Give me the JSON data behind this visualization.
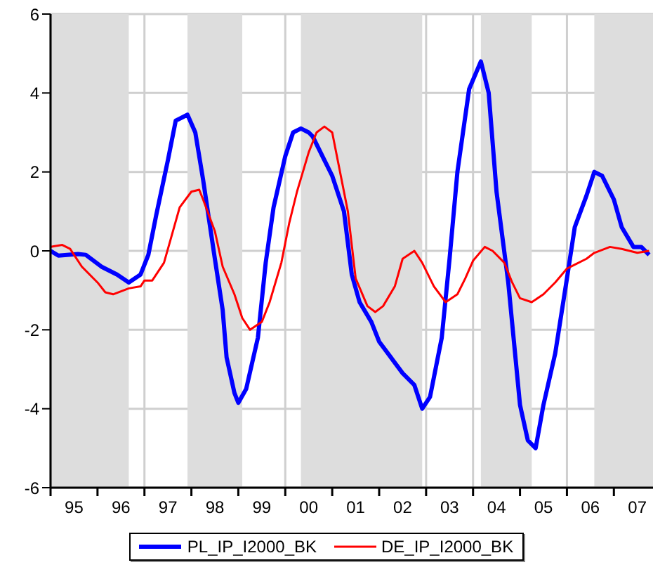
{
  "chart_data": {
    "type": "line",
    "series": [
      {
        "name": "PL_IP_I2000_BK",
        "color": "#0000ff",
        "x": [
          "1995-01",
          "1995-03",
          "1995-08",
          "1995-10",
          "1996-02",
          "1996-06",
          "1996-09",
          "1996-12",
          "1997-02",
          "1997-04",
          "1997-07",
          "1997-09",
          "1997-12",
          "1998-02",
          "1998-04",
          "1998-07",
          "1998-09",
          "1998-10",
          "1998-12",
          "1999-01",
          "1999-03",
          "1999-06",
          "1999-08",
          "1999-10",
          "2000-01",
          "2000-03",
          "2000-05",
          "2000-07",
          "2000-08",
          "2000-11",
          "2001-01",
          "2001-04",
          "2001-06",
          "2001-08",
          "2001-11",
          "2002-01",
          "2002-04",
          "2002-07",
          "2002-10",
          "2002-12",
          "2003-02",
          "2003-05",
          "2003-07",
          "2003-09",
          "2003-12",
          "2004-03",
          "2004-05",
          "2004-07",
          "2004-10",
          "2005-01",
          "2005-03",
          "2005-05",
          "2005-07",
          "2005-10",
          "2006-01",
          "2006-03",
          "2006-06",
          "2006-08",
          "2006-10",
          "2007-01",
          "2007-03",
          "2007-06",
          "2007-08",
          "2007-10"
        ],
        "values": [
          0.0,
          -0.12,
          -0.08,
          -0.1,
          -0.4,
          -0.6,
          -0.8,
          -0.6,
          -0.1,
          0.9,
          2.3,
          3.3,
          3.45,
          3.0,
          1.8,
          -0.2,
          -1.5,
          -2.7,
          -3.6,
          -3.85,
          -3.5,
          -2.2,
          -0.3,
          1.1,
          2.4,
          3.0,
          3.1,
          3.0,
          2.9,
          2.3,
          1.9,
          1.0,
          -0.6,
          -1.3,
          -1.8,
          -2.3,
          -2.7,
          -3.1,
          -3.4,
          -4.0,
          -3.7,
          -2.2,
          -0.2,
          2.0,
          4.1,
          4.8,
          4.0,
          1.5,
          -0.8,
          -3.9,
          -4.8,
          -5.0,
          -3.9,
          -2.6,
          -0.7,
          0.6,
          1.4,
          2.0,
          1.9,
          1.3,
          0.6,
          0.1,
          0.1,
          -0.1
        ]
      },
      {
        "name": "DE_IP_I2000_BK",
        "color": "#ff0000",
        "x": [
          "1995-01",
          "1995-04",
          "1995-06",
          "1995-09",
          "1996-01",
          "1996-03",
          "1996-05",
          "1996-09",
          "1996-12",
          "1997-01",
          "1997-03",
          "1997-06",
          "1997-08",
          "1997-10",
          "1998-01",
          "1998-03",
          "1998-04",
          "1998-07",
          "1998-09",
          "1998-12",
          "1999-02",
          "1999-04",
          "1999-07",
          "1999-09",
          "1999-12",
          "2000-02",
          "2000-04",
          "2000-07",
          "2000-09",
          "2000-11",
          "2001-01",
          "2001-02",
          "2001-05",
          "2001-07",
          "2001-10",
          "2001-12",
          "2002-02",
          "2002-05",
          "2002-07",
          "2002-10",
          "2002-12",
          "2003-03",
          "2003-06",
          "2003-09",
          "2003-11",
          "2004-01",
          "2004-04",
          "2004-06",
          "2004-09",
          "2004-11",
          "2005-01",
          "2005-04",
          "2005-07",
          "2005-10",
          "2006-01",
          "2006-03",
          "2006-06",
          "2006-08",
          "2006-12",
          "2007-03",
          "2007-07",
          "2007-10"
        ],
        "values": [
          0.1,
          0.15,
          0.05,
          -0.4,
          -0.8,
          -1.05,
          -1.1,
          -0.95,
          -0.9,
          -0.75,
          -0.75,
          -0.3,
          0.4,
          1.1,
          1.5,
          1.55,
          1.3,
          0.5,
          -0.4,
          -1.1,
          -1.7,
          -2.0,
          -1.8,
          -1.3,
          -0.3,
          0.7,
          1.5,
          2.5,
          3.0,
          3.15,
          3.0,
          2.5,
          1.0,
          -0.7,
          -1.4,
          -1.55,
          -1.4,
          -0.9,
          -0.2,
          0.0,
          -0.3,
          -0.9,
          -1.3,
          -1.1,
          -0.7,
          -0.25,
          0.1,
          0.0,
          -0.3,
          -0.8,
          -1.2,
          -1.3,
          -1.1,
          -0.8,
          -0.45,
          -0.35,
          -0.2,
          -0.05,
          0.1,
          0.05,
          -0.05,
          0.0
        ]
      }
    ],
    "xlim": [
      "1995-01",
      "2007-11"
    ],
    "xticks": [
      {
        "value": "1995",
        "label": null
      },
      {
        "value": "1995-07",
        "label": "95"
      },
      {
        "value": "1996",
        "label": null
      },
      {
        "value": "1996-07",
        "label": "96"
      },
      {
        "value": "1997",
        "label": null
      },
      {
        "value": "1997-07",
        "label": "97"
      },
      {
        "value": "1998",
        "label": null
      },
      {
        "value": "1998-07",
        "label": "98"
      },
      {
        "value": "1999",
        "label": null
      },
      {
        "value": "1999-07",
        "label": "99"
      },
      {
        "value": "2000",
        "label": null
      },
      {
        "value": "2000-07",
        "label": "00"
      },
      {
        "value": "2001",
        "label": null
      },
      {
        "value": "2001-07",
        "label": "01"
      },
      {
        "value": "2002",
        "label": null
      },
      {
        "value": "2002-07",
        "label": "02"
      },
      {
        "value": "2003",
        "label": null
      },
      {
        "value": "2003-07",
        "label": "03"
      },
      {
        "value": "2004",
        "label": null
      },
      {
        "value": "2004-07",
        "label": "04"
      },
      {
        "value": "2005",
        "label": null
      },
      {
        "value": "2005-07",
        "label": "05"
      },
      {
        "value": "2006",
        "label": null
      },
      {
        "value": "2006-07",
        "label": "06"
      },
      {
        "value": "2007",
        "label": null
      },
      {
        "value": "2007-07",
        "label": "07"
      }
    ],
    "ylim": [
      -6,
      6
    ],
    "yticks": [
      -6,
      -4,
      -2,
      0,
      2,
      4,
      6
    ],
    "bands": [
      {
        "axis": "x",
        "from": "1995-01",
        "to": "1996-09",
        "color": "#dddddd"
      },
      {
        "axis": "x",
        "from": "1997-12",
        "to": "1999-02",
        "color": "#dddddd"
      },
      {
        "axis": "x",
        "from": "2000-05",
        "to": "2002-12",
        "color": "#dddddd"
      },
      {
        "axis": "x",
        "from": "2004-03",
        "to": "2005-04",
        "color": "#dddddd"
      },
      {
        "axis": "x",
        "from": "2006-08",
        "to": "2007-11",
        "color": "#dddddd"
      }
    ],
    "grid": true,
    "legend": "bottom"
  }
}
